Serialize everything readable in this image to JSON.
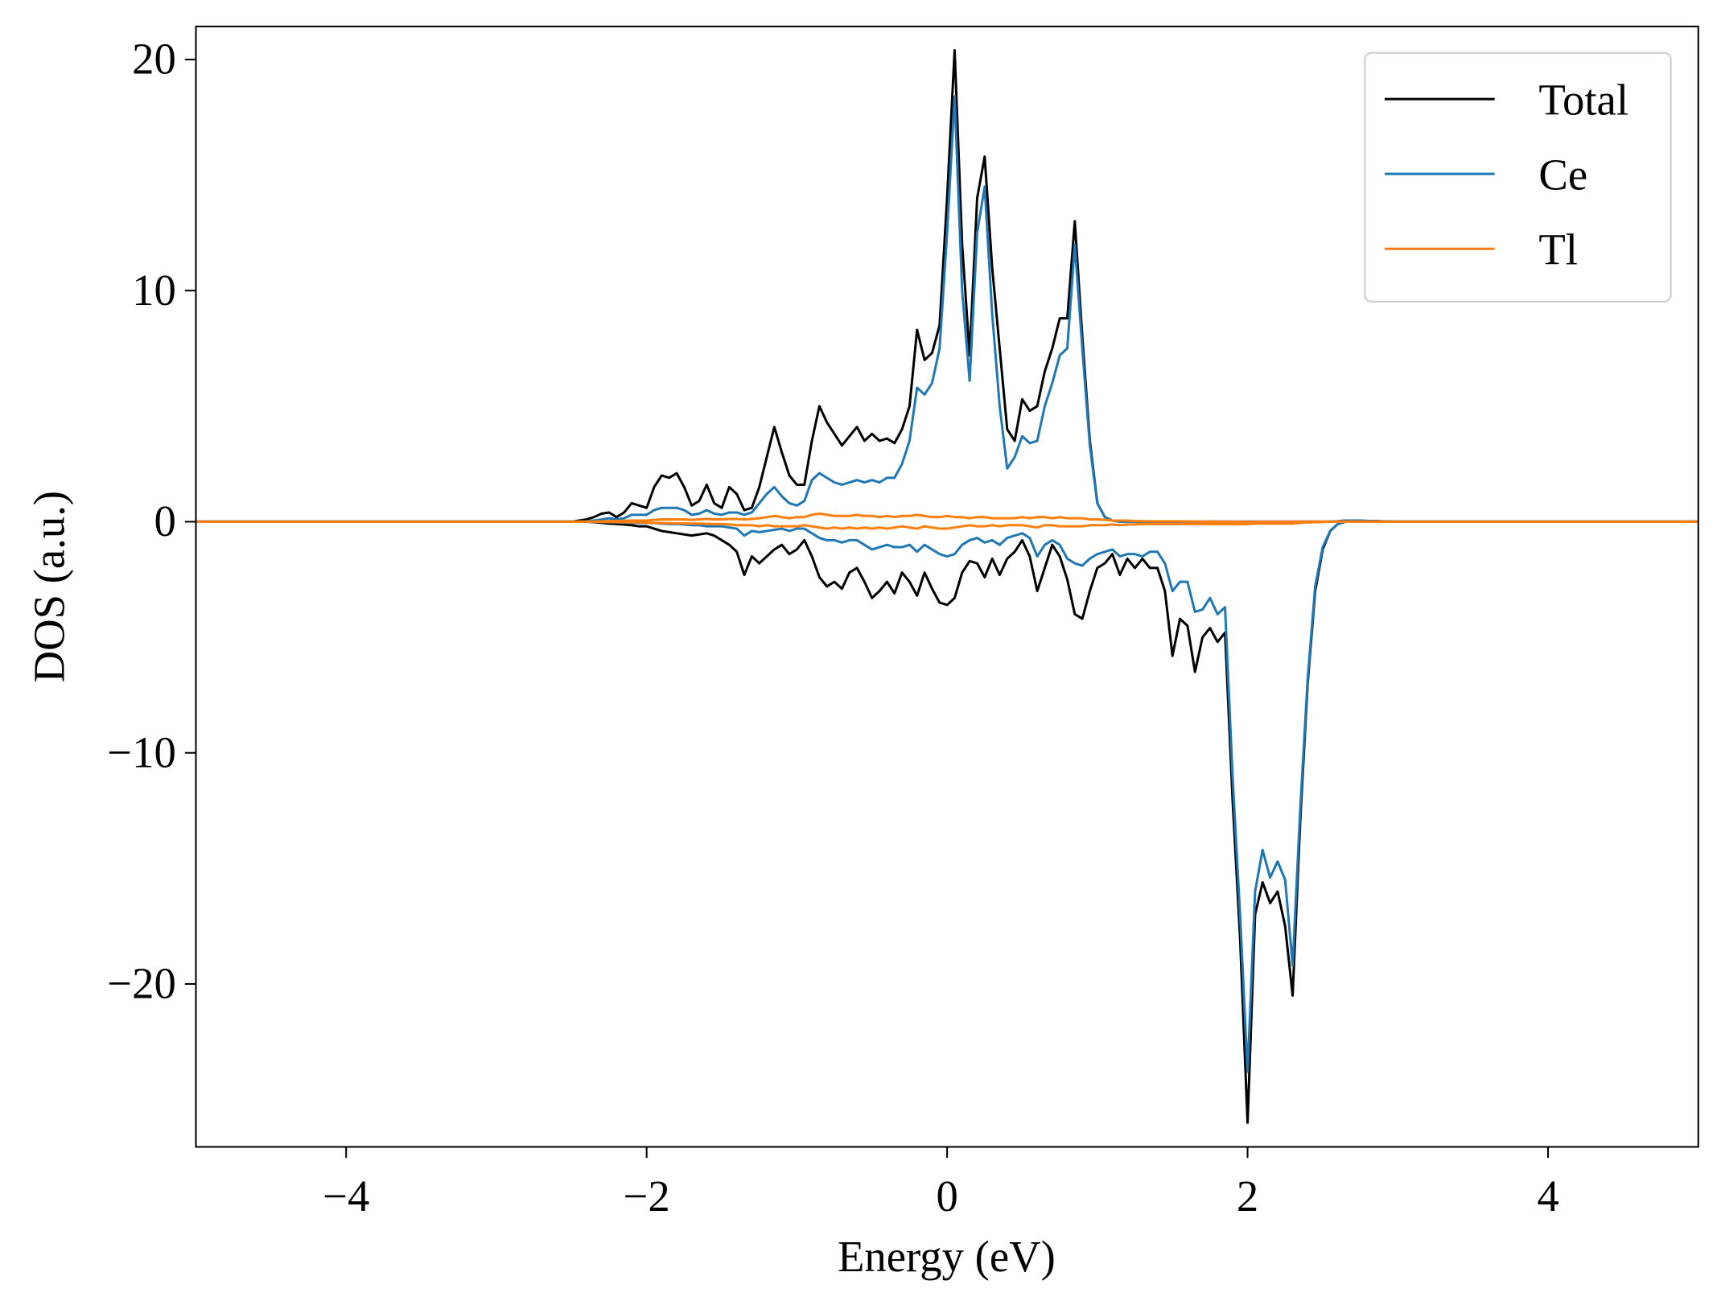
{
  "chart_data": {
    "type": "line",
    "xlabel": "Energy (eV)",
    "ylabel": "DOS (a.u.)",
    "x": [
      -5,
      -3,
      -2.5,
      -2.45,
      -2.4,
      -2.35,
      -2.3,
      -2.25,
      -2.2,
      -2.15,
      -2.1,
      -2.05,
      -2.0,
      -1.95,
      -1.9,
      -1.85,
      -1.8,
      -1.75,
      -1.7,
      -1.65,
      -1.6,
      -1.55,
      -1.5,
      -1.45,
      -1.4,
      -1.35,
      -1.3,
      -1.25,
      -1.2,
      -1.15,
      -1.1,
      -1.05,
      -1.0,
      -0.95,
      -0.9,
      -0.85,
      -0.8,
      -0.75,
      -0.7,
      -0.65,
      -0.6,
      -0.55,
      -0.5,
      -0.45,
      -0.4,
      -0.35,
      -0.3,
      -0.25,
      -0.2,
      -0.15,
      -0.1,
      -0.05,
      0,
      0.05,
      0.1,
      0.15,
      0.2,
      0.25,
      0.3,
      0.35,
      0.4,
      0.45,
      0.5,
      0.55,
      0.6,
      0.65,
      0.7,
      0.75,
      0.8,
      0.85,
      0.9,
      0.95,
      1.0,
      1.05,
      1.1,
      1.15,
      1.2,
      1.25,
      1.3,
      1.35,
      1.4,
      1.45,
      1.5,
      1.55,
      1.6,
      1.65,
      1.7,
      1.75,
      1.8,
      1.85,
      1.9,
      1.95,
      2.0,
      2.05,
      2.1,
      2.15,
      2.2,
      2.25,
      2.3,
      2.35,
      2.4,
      2.45,
      2.5,
      2.55,
      2.6,
      2.65,
      2.7,
      3,
      5
    ],
    "series": [
      {
        "name": "Total",
        "color": "#000000",
        "values": [
          0,
          0,
          0,
          0.05,
          0.1,
          0.2,
          0.35,
          0.4,
          0.2,
          0.4,
          0.8,
          0.7,
          0.6,
          1.5,
          2.0,
          1.9,
          2.1,
          1.5,
          0.7,
          0.9,
          1.6,
          0.8,
          0.6,
          1.5,
          1.2,
          0.5,
          0.6,
          1.5,
          2.8,
          4.1,
          3.0,
          2.0,
          1.6,
          1.6,
          3.5,
          5.0,
          4.3,
          3.8,
          3.3,
          3.7,
          4.1,
          3.5,
          3.8,
          3.5,
          3.6,
          3.4,
          4.0,
          5.0,
          8.3,
          7.0,
          7.3,
          8.5,
          14,
          20.4,
          12,
          7.2,
          14,
          15.8,
          11,
          7.5,
          4.0,
          3.5,
          5.3,
          4.8,
          5.0,
          6.5,
          7.5,
          8.8,
          8.8,
          13.0,
          8,
          3.5,
          0.8,
          0.2,
          0.05,
          0,
          0,
          0,
          0,
          0,
          0,
          0,
          0,
          0,
          0,
          0,
          0,
          0,
          0,
          0,
          0,
          0,
          0,
          0,
          0,
          0,
          0,
          0,
          0,
          0,
          0,
          0,
          0,
          0,
          0.02,
          0.05,
          0.05,
          0,
          0
        ],
        "values_down": [
          0,
          0,
          0,
          0,
          0,
          -0.02,
          -0.05,
          -0.08,
          -0.1,
          -0.12,
          -0.15,
          -0.2,
          -0.2,
          -0.3,
          -0.4,
          -0.45,
          -0.5,
          -0.55,
          -0.6,
          -0.55,
          -0.5,
          -0.6,
          -0.8,
          -1.0,
          -1.3,
          -2.3,
          -1.5,
          -1.8,
          -1.5,
          -1.2,
          -1.0,
          -1.4,
          -1.2,
          -0.8,
          -1.5,
          -2.4,
          -2.8,
          -2.6,
          -2.9,
          -2.2,
          -2.0,
          -2.6,
          -3.3,
          -3.0,
          -2.6,
          -3.1,
          -2.2,
          -2.6,
          -3.2,
          -2.2,
          -2.9,
          -3.5,
          -3.6,
          -3.3,
          -2.2,
          -1.7,
          -1.8,
          -2.4,
          -1.6,
          -2.3,
          -1.6,
          -1.3,
          -0.8,
          -1.5,
          -3.0,
          -2.0,
          -1.0,
          -1.5,
          -2.5,
          -4.0,
          -4.2,
          -3.0,
          -2.0,
          -1.8,
          -1.4,
          -2.3,
          -1.6,
          -2.0,
          -1.6,
          -2.0,
          -2.0,
          -3.0,
          -5.8,
          -4.2,
          -4.5,
          -6.5,
          -5.0,
          -4.6,
          -5.2,
          -4.8,
          -12,
          -18,
          -26,
          -17,
          -15.6,
          -16.5,
          -16,
          -17.5,
          -20.5,
          -13,
          -7,
          -3,
          -1.2,
          -0.4,
          -0.1,
          0,
          0,
          0,
          0
        ]
      },
      {
        "name": "Ce",
        "color": "#1f77b4",
        "values": [
          0,
          0,
          0,
          0,
          0.02,
          0.05,
          0.1,
          0.15,
          0.1,
          0.15,
          0.3,
          0.3,
          0.3,
          0.5,
          0.6,
          0.6,
          0.6,
          0.5,
          0.3,
          0.35,
          0.5,
          0.35,
          0.3,
          0.4,
          0.4,
          0.3,
          0.4,
          0.8,
          1.2,
          1.5,
          1.1,
          0.8,
          0.7,
          0.9,
          1.8,
          2.1,
          1.9,
          1.7,
          1.6,
          1.7,
          1.8,
          1.7,
          1.8,
          1.7,
          1.9,
          1.9,
          2.5,
          3.5,
          5.8,
          5.5,
          6.0,
          7.5,
          12.5,
          18.4,
          10,
          6.1,
          12.5,
          14.5,
          9,
          5,
          2.3,
          2.8,
          3.7,
          3.4,
          3.5,
          5.0,
          6.0,
          7.2,
          7.5,
          12,
          7.5,
          3.3,
          0.8,
          0.2,
          0.05,
          0,
          0,
          0,
          0,
          0,
          0,
          0,
          0,
          0,
          0,
          0,
          0,
          0,
          0,
          0,
          0,
          0,
          0,
          0,
          0,
          0,
          0,
          0,
          0,
          0,
          0,
          0,
          0,
          0,
          0.02,
          0.05,
          0.05,
          0,
          0
        ],
        "values_down": [
          0,
          0,
          0,
          0,
          0,
          0,
          -0.01,
          -0.02,
          -0.03,
          -0.04,
          -0.05,
          -0.05,
          -0.05,
          -0.06,
          -0.08,
          -0.1,
          -0.1,
          -0.12,
          -0.15,
          -0.15,
          -0.2,
          -0.2,
          -0.2,
          -0.25,
          -0.3,
          -0.6,
          -0.4,
          -0.45,
          -0.4,
          -0.35,
          -0.3,
          -0.4,
          -0.3,
          -0.3,
          -0.5,
          -0.7,
          -0.8,
          -0.8,
          -0.9,
          -0.8,
          -0.8,
          -1.0,
          -1.2,
          -1.1,
          -1.0,
          -1.1,
          -1.1,
          -1.0,
          -1.3,
          -1.0,
          -1.2,
          -1.4,
          -1.5,
          -1.4,
          -1.0,
          -0.8,
          -0.7,
          -0.9,
          -0.8,
          -1.0,
          -0.7,
          -0.6,
          -0.5,
          -0.7,
          -1.5,
          -1.0,
          -0.8,
          -1.0,
          -1.6,
          -1.8,
          -1.9,
          -1.6,
          -1.4,
          -1.3,
          -1.2,
          -1.5,
          -1.4,
          -1.4,
          -1.5,
          -1.3,
          -1.3,
          -1.8,
          -3.0,
          -2.6,
          -2.6,
          -3.9,
          -3.8,
          -3.3,
          -4.0,
          -3.7,
          -11,
          -17,
          -23.8,
          -16,
          -14.2,
          -15.4,
          -14.7,
          -15.5,
          -19.2,
          -12.5,
          -6.8,
          -2.8,
          -1.1,
          -0.4,
          -0.1,
          0,
          0,
          0,
          0
        ]
      },
      {
        "name": "Tl",
        "color": "#ff7f0e",
        "values": [
          0,
          0,
          0,
          0,
          0,
          0,
          0.02,
          0.03,
          0.03,
          0.04,
          0.05,
          0.05,
          0.05,
          0.08,
          0.1,
          0.1,
          0.1,
          0.1,
          0.08,
          0.1,
          0.12,
          0.1,
          0.1,
          0.12,
          0.12,
          0.1,
          0.12,
          0.15,
          0.2,
          0.25,
          0.2,
          0.15,
          0.2,
          0.2,
          0.3,
          0.35,
          0.3,
          0.25,
          0.25,
          0.25,
          0.3,
          0.25,
          0.25,
          0.2,
          0.25,
          0.2,
          0.25,
          0.25,
          0.3,
          0.25,
          0.2,
          0.2,
          0.25,
          0.2,
          0.2,
          0.15,
          0.2,
          0.2,
          0.15,
          0.15,
          0.15,
          0.15,
          0.2,
          0.15,
          0.2,
          0.2,
          0.15,
          0.2,
          0.15,
          0.15,
          0.15,
          0.1,
          0.1,
          0.08,
          0.05,
          0.05,
          0.05,
          0.03,
          0.03,
          0.02,
          0.02,
          0.02,
          0.02,
          0.02,
          0.01,
          0.01,
          0.01,
          0,
          0,
          0,
          0,
          0,
          0,
          0,
          0,
          0,
          0,
          0,
          0,
          0,
          0,
          0,
          0,
          0,
          0,
          0,
          0,
          0,
          0
        ],
        "values_down": [
          0,
          0,
          0,
          0,
          0,
          0,
          -0.01,
          -0.01,
          -0.02,
          -0.02,
          -0.03,
          -0.03,
          -0.04,
          -0.05,
          -0.06,
          -0.06,
          -0.07,
          -0.07,
          -0.08,
          -0.08,
          -0.09,
          -0.1,
          -0.1,
          -0.12,
          -0.15,
          -0.15,
          -0.15,
          -0.2,
          -0.15,
          -0.2,
          -0.2,
          -0.2,
          -0.2,
          -0.15,
          -0.2,
          -0.25,
          -0.3,
          -0.25,
          -0.3,
          -0.25,
          -0.3,
          -0.25,
          -0.3,
          -0.25,
          -0.3,
          -0.25,
          -0.2,
          -0.25,
          -0.3,
          -0.2,
          -0.25,
          -0.3,
          -0.3,
          -0.25,
          -0.2,
          -0.15,
          -0.2,
          -0.2,
          -0.15,
          -0.2,
          -0.15,
          -0.15,
          -0.15,
          -0.2,
          -0.25,
          -0.15,
          -0.15,
          -0.2,
          -0.2,
          -0.2,
          -0.2,
          -0.15,
          -0.15,
          -0.15,
          -0.12,
          -0.15,
          -0.12,
          -0.12,
          -0.1,
          -0.1,
          -0.1,
          -0.1,
          -0.1,
          -0.1,
          -0.1,
          -0.1,
          -0.1,
          -0.1,
          -0.1,
          -0.1,
          -0.1,
          -0.1,
          -0.1,
          -0.08,
          -0.08,
          -0.08,
          -0.08,
          -0.08,
          -0.08,
          -0.05,
          -0.03,
          -0.02,
          -0.01,
          0,
          0,
          0,
          0,
          0,
          0
        ]
      }
    ],
    "xlim": [
      -5,
      5
    ],
    "ylim": [
      -27.05,
      21.43
    ],
    "xticks": [
      {
        "value": -4,
        "label": "−4"
      },
      {
        "value": -2,
        "label": "−2"
      },
      0,
      2,
      4
    ],
    "yticks": [
      {
        "value": -20,
        "label": "−20"
      },
      {
        "value": -10,
        "label": "−10"
      },
      0,
      10,
      20
    ],
    "legend": "upper right",
    "grid": false
  }
}
